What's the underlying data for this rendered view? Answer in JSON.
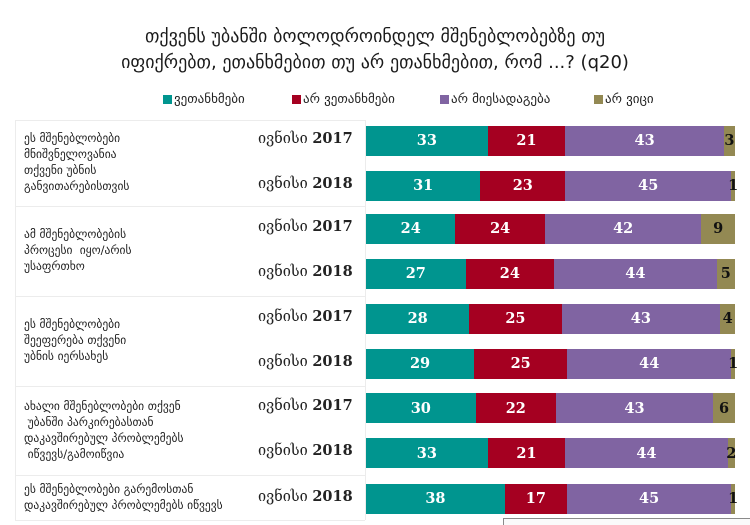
{
  "chart_data": {
    "type": "bar",
    "orientation": "horizontal",
    "stacked": true,
    "title_lines": [
      "თქვენს უბანში ბოლოდროინდელ მშენებლობებზე თუ",
      "იფიქრებთ, ეთანხმებით თუ არ ეთანხმებით, რომ ...? (q20)"
    ],
    "legend_position": "top",
    "xlim": [
      0,
      100
    ],
    "series_names": [
      "ვეთანხმები",
      "არ ვეთანხმები",
      "არ მიესადაგება",
      "არ ვიცი"
    ],
    "series_colors": [
      "#00958f",
      "#a50021",
      "#8064a2",
      "#938953"
    ],
    "groups": [
      {
        "label": "ეს მშენებლობები\nმნიშვნელოვანია\nთქვენი უბნის\nგანვითარებისთვის",
        "rows": [
          {
            "period": "ივნისი",
            "year": "2017",
            "values": [
              33,
              21,
              43,
              3
            ]
          },
          {
            "period": "ივნისი",
            "year": "2018",
            "values": [
              31,
              23,
              45,
              1
            ]
          }
        ]
      },
      {
        "label": "ამ მშენებლობების\nპროცესი  იყო/არის\nუსაფრთხო",
        "rows": [
          {
            "period": "ივნისი",
            "year": "2017",
            "values": [
              24,
              24,
              42,
              9
            ]
          },
          {
            "period": "ივნისი",
            "year": "2018",
            "values": [
              27,
              24,
              44,
              5
            ]
          }
        ]
      },
      {
        "label": "ეს მშენებლობები\nშეეფერება თქვენი\nუბნის იერსახეს",
        "rows": [
          {
            "period": "ივნისი",
            "year": "2017",
            "values": [
              28,
              25,
              43,
              4
            ]
          },
          {
            "period": "ივნისი",
            "year": "2018",
            "values": [
              29,
              25,
              44,
              1
            ]
          }
        ]
      },
      {
        "label": "ახალი მშენებლობები თქვენ\n უბანში პარკირებასთან\nდაკავშირებულ პრობლემებს\n იწვევს/გამოიწვია",
        "rows": [
          {
            "period": "ივნისი",
            "year": "2017",
            "values": [
              30,
              22,
              43,
              6
            ]
          },
          {
            "period": "ივნისი",
            "year": "2018",
            "values": [
              33,
              21,
              44,
              2
            ]
          }
        ]
      },
      {
        "label": "ეს მშენებლობები გარემოსთან\nდაკავშირებულ პრობლემებს იწვევს",
        "rows": [
          {
            "period": "ივნისი",
            "year": "2018",
            "values": [
              38,
              17,
              45,
              1
            ]
          }
        ]
      }
    ]
  }
}
